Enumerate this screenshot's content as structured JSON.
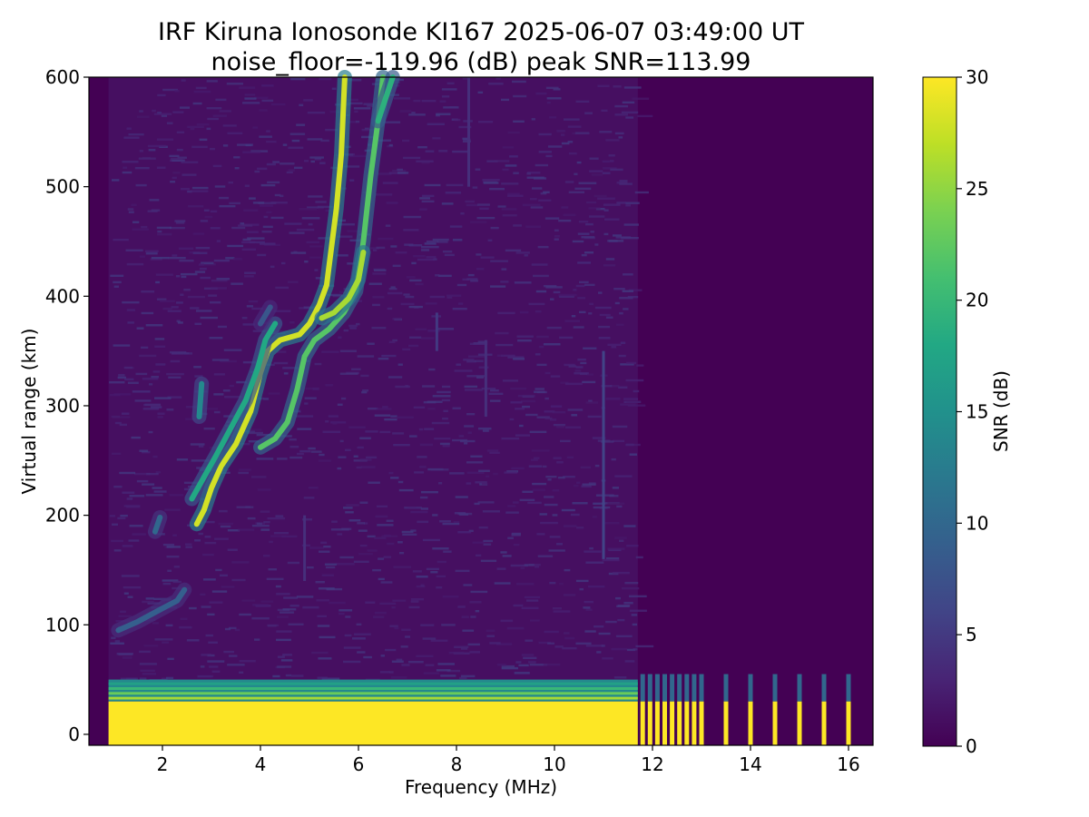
{
  "chart_data": {
    "type": "heatmap",
    "title": "IRF Kiruna Ionosonde KI167 2025-06-07 03:49:00  UT",
    "subtitle": "noise_floor=-119.96 (dB) peak SNR=113.99",
    "xlabel": "Frequency (MHz)",
    "ylabel": "Virtual range (km)",
    "colorbar_label": "SNR (dB)",
    "colormap": "viridis",
    "xlim": [
      0.5,
      16.5
    ],
    "ylim": [
      -10,
      600
    ],
    "clim": [
      0,
      30
    ],
    "x_ticks": [
      2,
      4,
      6,
      8,
      10,
      12,
      14,
      16
    ],
    "y_ticks": [
      0,
      100,
      200,
      300,
      400,
      500,
      600
    ],
    "colorbar_ticks": [
      0,
      5,
      10,
      15,
      20,
      25,
      30
    ],
    "sweep": {
      "continuous_band_mhz": [
        0.9,
        11.7
      ],
      "discrete_freqs_mhz": [
        11.8,
        11.95,
        12.1,
        12.25,
        12.4,
        12.55,
        12.7,
        12.85,
        13.0,
        13.5,
        14.0,
        14.5,
        15.0,
        15.5,
        16.0
      ]
    },
    "ground_clutter": {
      "saturated_below_km": 30,
      "fringe_top_km": 50,
      "snr": 30
    },
    "traces": [
      {
        "points": [
          [
            1.1,
            95
          ],
          [
            1.5,
            103
          ],
          [
            2.0,
            115
          ],
          [
            2.3,
            122
          ],
          [
            2.45,
            132
          ]
        ],
        "snr": 9
      },
      {
        "points": [
          [
            1.85,
            185
          ],
          [
            1.95,
            198
          ]
        ],
        "snr": 10
      },
      {
        "points": [
          [
            2.7,
            192
          ],
          [
            2.85,
            205
          ],
          [
            3.0,
            225
          ],
          [
            3.2,
            245
          ],
          [
            3.5,
            265
          ],
          [
            3.8,
            295
          ],
          [
            4.0,
            330
          ],
          [
            4.15,
            350
          ],
          [
            4.4,
            360
          ],
          [
            4.8,
            365
          ],
          [
            5.0,
            375
          ],
          [
            5.2,
            392
          ],
          [
            5.35,
            410
          ],
          [
            5.45,
            445
          ],
          [
            5.55,
            480
          ],
          [
            5.65,
            530
          ],
          [
            5.7,
            580
          ],
          [
            5.72,
            600
          ]
        ],
        "snr": 28
      },
      {
        "points": [
          [
            2.6,
            215
          ],
          [
            2.85,
            235
          ],
          [
            3.1,
            255
          ],
          [
            3.4,
            280
          ],
          [
            3.7,
            305
          ],
          [
            3.95,
            335
          ],
          [
            4.1,
            360
          ],
          [
            4.3,
            375
          ]
        ],
        "snr": 18
      },
      {
        "points": [
          [
            4.0,
            262
          ],
          [
            4.3,
            270
          ],
          [
            4.55,
            285
          ],
          [
            4.75,
            315
          ],
          [
            4.9,
            345
          ],
          [
            5.1,
            360
          ],
          [
            5.4,
            370
          ],
          [
            5.7,
            385
          ],
          [
            5.95,
            405
          ],
          [
            6.1,
            450
          ],
          [
            6.25,
            510
          ],
          [
            6.4,
            560
          ],
          [
            6.5,
            600
          ]
        ],
        "snr": 22
      },
      {
        "points": [
          [
            5.25,
            380
          ],
          [
            5.5,
            385
          ],
          [
            5.8,
            398
          ],
          [
            6.0,
            415
          ],
          [
            6.1,
            440
          ]
        ],
        "snr": 26
      },
      {
        "points": [
          [
            6.4,
            560
          ],
          [
            6.55,
            580
          ],
          [
            6.7,
            600
          ]
        ],
        "snr": 19
      },
      {
        "points": [
          [
            2.75,
            290
          ],
          [
            2.8,
            320
          ]
        ],
        "snr": 14
      },
      {
        "points": [
          [
            4.0,
            375
          ],
          [
            4.2,
            390
          ]
        ],
        "snr": 8
      }
    ],
    "spur_lines_mhz": [
      {
        "freq": 8.25,
        "from_km": 500,
        "to_km": 600,
        "snr": 4
      },
      {
        "freq": 11.0,
        "from_km": 160,
        "to_km": 350,
        "snr": 6
      },
      {
        "freq": 8.6,
        "from_km": 290,
        "to_km": 360,
        "snr": 4
      },
      {
        "freq": 7.6,
        "from_km": 350,
        "to_km": 385,
        "snr": 5
      },
      {
        "freq": 4.9,
        "from_km": 140,
        "to_km": 200,
        "snr": 4
      }
    ]
  }
}
